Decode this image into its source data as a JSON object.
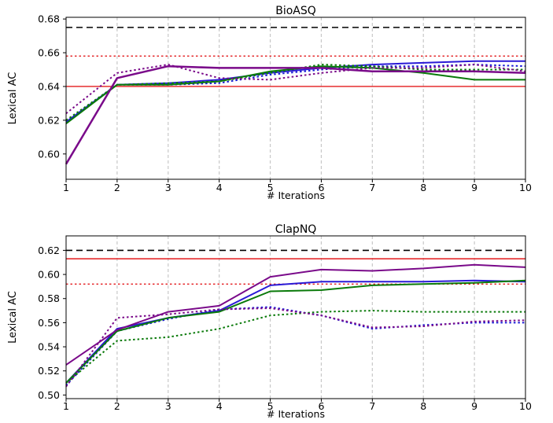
{
  "chart_data": [
    {
      "type": "line",
      "title": "BioASQ",
      "xlabel": "# Iterations",
      "ylabel": "Lexical AC",
      "x": [
        1,
        2,
        3,
        4,
        5,
        6,
        7,
        8,
        9,
        10
      ],
      "xticks": [
        "1",
        "2",
        "3",
        "4",
        "5",
        "6",
        "7",
        "8",
        "9",
        "10"
      ],
      "xlim": [
        1,
        10
      ],
      "ylim": [
        0.585,
        0.681
      ],
      "yticks": [
        0.6,
        0.62,
        0.64,
        0.66,
        0.68
      ],
      "ytick_labels": [
        "0.60",
        "0.62",
        "0.64",
        "0.66",
        "0.68"
      ],
      "vertical_grid": true,
      "hlines": [
        {
          "value": 0.675,
          "color": "#000000",
          "style": "dashed"
        },
        {
          "value": 0.658,
          "color": "#e31a1c",
          "style": "dotted"
        },
        {
          "value": 0.64,
          "color": "#e31a1c",
          "style": "solid"
        }
      ],
      "series": [
        {
          "color": "#2a1ad6",
          "style": "solid",
          "width": 2,
          "values": [
            0.619,
            0.641,
            0.642,
            0.644,
            0.648,
            0.651,
            0.653,
            0.654,
            0.655,
            0.655
          ]
        },
        {
          "color": "#1a1ad6",
          "style": "dotted",
          "width": 2,
          "values": [
            0.619,
            0.641,
            0.641,
            0.642,
            0.647,
            0.65,
            0.652,
            0.652,
            0.653,
            0.652
          ]
        },
        {
          "color": "#0a7a0a",
          "style": "solid",
          "width": 2,
          "values": [
            0.618,
            0.641,
            0.641,
            0.643,
            0.649,
            0.652,
            0.651,
            0.648,
            0.644,
            0.644
          ]
        },
        {
          "color": "#0a7a0a",
          "style": "dotted",
          "width": 2,
          "values": [
            0.62,
            0.641,
            0.642,
            0.643,
            0.648,
            0.653,
            0.652,
            0.65,
            0.65,
            0.65
          ]
        },
        {
          "color": "#7a0a8a",
          "style": "solid",
          "width": 2.5,
          "values": [
            0.594,
            0.645,
            0.652,
            0.651,
            0.651,
            0.651,
            0.649,
            0.649,
            0.649,
            0.648
          ]
        },
        {
          "color": "#7a0a8a",
          "style": "dotted",
          "width": 2,
          "values": [
            0.624,
            0.648,
            0.653,
            0.645,
            0.644,
            0.648,
            0.651,
            0.651,
            0.653,
            0.649
          ]
        }
      ]
    },
    {
      "type": "line",
      "title": "ClapNQ",
      "xlabel": "# Iterations",
      "ylabel": "Lexical AC",
      "x": [
        1,
        2,
        3,
        4,
        5,
        6,
        7,
        8,
        9,
        10
      ],
      "xticks": [
        "1",
        "2",
        "3",
        "4",
        "5",
        "6",
        "7",
        "8",
        "9",
        "10"
      ],
      "xlim": [
        1,
        10
      ],
      "ylim": [
        0.497,
        0.632
      ],
      "yticks": [
        0.5,
        0.52,
        0.54,
        0.56,
        0.58,
        0.6,
        0.62
      ],
      "ytick_labels": [
        "0.50",
        "0.52",
        "0.54",
        "0.56",
        "0.58",
        "0.60",
        "0.62"
      ],
      "vertical_grid": true,
      "hlines": [
        {
          "value": 0.62,
          "color": "#000000",
          "style": "dashed"
        },
        {
          "value": 0.613,
          "color": "#e31a1c",
          "style": "solid"
        },
        {
          "value": 0.592,
          "color": "#e31a1c",
          "style": "dotted"
        }
      ],
      "series": [
        {
          "color": "#2a1ad6",
          "style": "solid",
          "width": 2,
          "values": [
            0.51,
            0.555,
            0.564,
            0.57,
            0.591,
            0.594,
            0.594,
            0.594,
            0.595,
            0.594
          ]
        },
        {
          "color": "#1a1ad6",
          "style": "dotted",
          "width": 2,
          "values": [
            0.508,
            0.553,
            0.563,
            0.571,
            0.573,
            0.566,
            0.555,
            0.558,
            0.56,
            0.56
          ]
        },
        {
          "color": "#0a7a0a",
          "style": "solid",
          "width": 2,
          "values": [
            0.51,
            0.553,
            0.564,
            0.569,
            0.586,
            0.587,
            0.591,
            0.592,
            0.593,
            0.595
          ]
        },
        {
          "color": "#0a7a0a",
          "style": "dotted",
          "width": 2,
          "values": [
            0.51,
            0.545,
            0.548,
            0.555,
            0.566,
            0.569,
            0.57,
            0.569,
            0.569,
            0.569
          ]
        },
        {
          "color": "#7a0a8a",
          "style": "solid",
          "width": 2,
          "values": [
            0.525,
            0.554,
            0.569,
            0.574,
            0.598,
            0.604,
            0.603,
            0.605,
            0.608,
            0.606
          ]
        },
        {
          "color": "#7a0a8a",
          "style": "dotted",
          "width": 2,
          "values": [
            0.507,
            0.564,
            0.567,
            0.571,
            0.572,
            0.566,
            0.556,
            0.557,
            0.561,
            0.562
          ]
        }
      ]
    }
  ]
}
